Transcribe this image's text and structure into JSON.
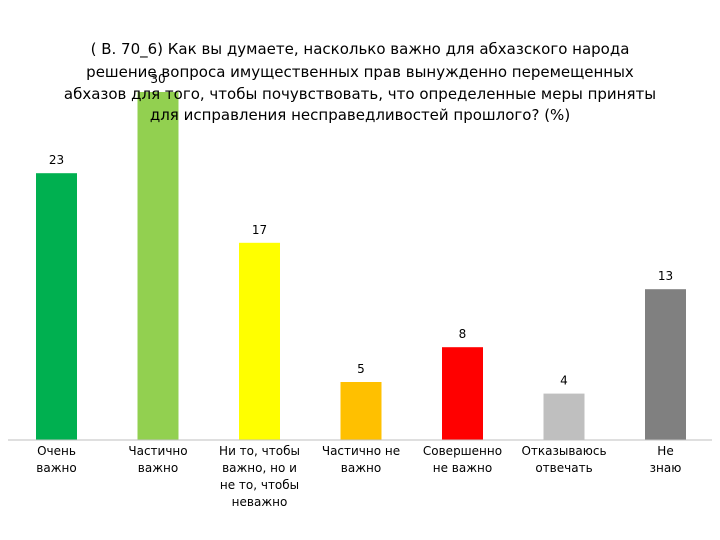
{
  "chart_data": {
    "type": "bar",
    "title_lines": [
      "( В. 70_6) Как вы думаете, насколько важно для абхазского народа",
      "решение вопроса имущественных прав вынужденно перемещенных",
      "абхазов для того, чтобы почувствовать, что определенные меры приняты",
      "для исправления несправедливостей прошлого? (%)"
    ],
    "categories": [
      [
        "Очень",
        "важно"
      ],
      [
        "Частично",
        "важно"
      ],
      [
        "Ни то, чтобы",
        "важно, но и",
        "не то,  чтобы",
        "неважно"
      ],
      [
        "Частично не",
        "важно"
      ],
      [
        "Совершенно",
        "не важно"
      ],
      [
        "Отказываюсь",
        "отвечать"
      ],
      [
        "Не",
        "знаю"
      ]
    ],
    "values": [
      23,
      30,
      17,
      5,
      8,
      4,
      13
    ],
    "colors": [
      "#00b050",
      "#92d050",
      "#ffff00",
      "#ffc000",
      "#ff0000",
      "#bfbfbf",
      "#808080"
    ],
    "xlabel": "",
    "ylabel": "",
    "ylim": [
      0,
      30
    ],
    "grid": false,
    "legend": "none"
  }
}
